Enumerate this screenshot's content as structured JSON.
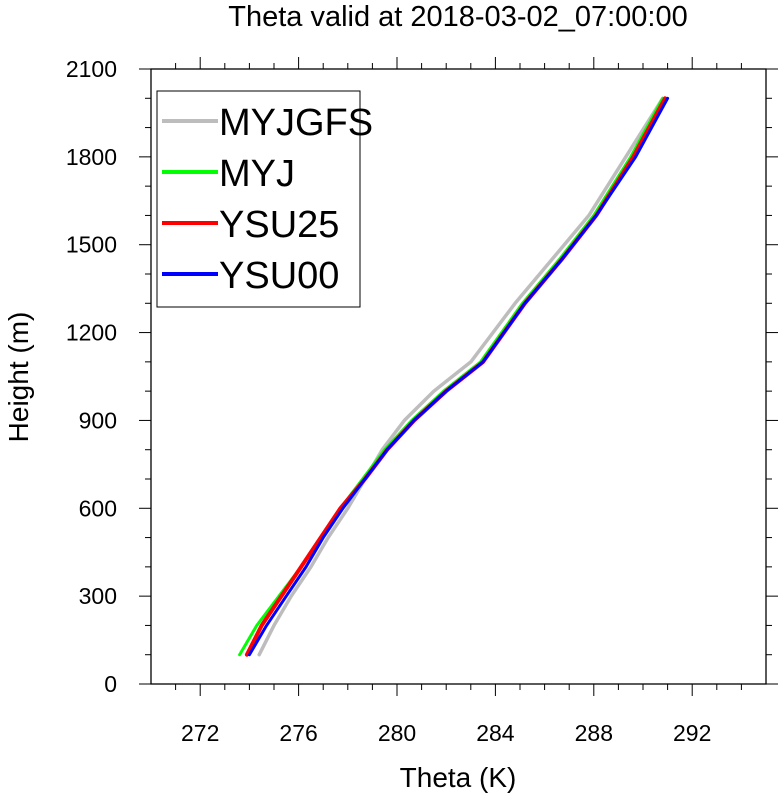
{
  "chart_data": {
    "type": "line",
    "title": "Theta valid at 2018-03-02_07:00:00",
    "xlabel": "Theta (K)",
    "ylabel": "Height (m)",
    "xlim": [
      270,
      295
    ],
    "ylim": [
      0,
      2100
    ],
    "xticks": [
      272,
      276,
      280,
      284,
      288,
      292
    ],
    "yticks": [
      0,
      300,
      600,
      900,
      1200,
      1500,
      1800,
      2100
    ],
    "grid": false,
    "legend_position": "top-left",
    "series": [
      {
        "name": "MYJGFS",
        "color": "#bdbdbd",
        "x": [
          274.4,
          275.0,
          275.7,
          276.5,
          277.2,
          278.0,
          278.7,
          279.4,
          280.3,
          281.5,
          283.0,
          284.8,
          286.3,
          287.8,
          289.3,
          290.8
        ],
        "y": [
          100,
          200,
          300,
          400,
          500,
          600,
          700,
          800,
          900,
          1000,
          1100,
          1300,
          1450,
          1600,
          1800,
          2000
        ]
      },
      {
        "name": "MYJ",
        "color": "#00ff00",
        "x": [
          273.6,
          274.3,
          275.2,
          276.1,
          276.9,
          277.7,
          278.6,
          279.5,
          280.6,
          281.9,
          283.4,
          285.1,
          286.6,
          288.0,
          289.5,
          290.8
        ],
        "y": [
          100,
          200,
          300,
          400,
          500,
          600,
          700,
          800,
          900,
          1000,
          1100,
          1300,
          1450,
          1600,
          1800,
          2000
        ]
      },
      {
        "name": "YSU25",
        "color": "#ff0000",
        "x": [
          273.9,
          274.5,
          275.3,
          276.1,
          276.9,
          277.7,
          278.7,
          279.6,
          280.7,
          282.0,
          283.5,
          285.2,
          286.7,
          288.1,
          289.6,
          290.9
        ],
        "y": [
          100,
          200,
          300,
          400,
          500,
          600,
          700,
          800,
          900,
          1000,
          1100,
          1300,
          1450,
          1600,
          1800,
          2000
        ]
      },
      {
        "name": "YSU00",
        "color": "#0000ff",
        "x": [
          274.0,
          274.7,
          275.5,
          276.3,
          277.0,
          277.8,
          278.7,
          279.6,
          280.7,
          282.0,
          283.5,
          285.2,
          286.7,
          288.1,
          289.7,
          291.0
        ],
        "y": [
          100,
          200,
          300,
          400,
          500,
          600,
          700,
          800,
          900,
          1000,
          1100,
          1300,
          1450,
          1600,
          1800,
          2000
        ]
      }
    ]
  }
}
